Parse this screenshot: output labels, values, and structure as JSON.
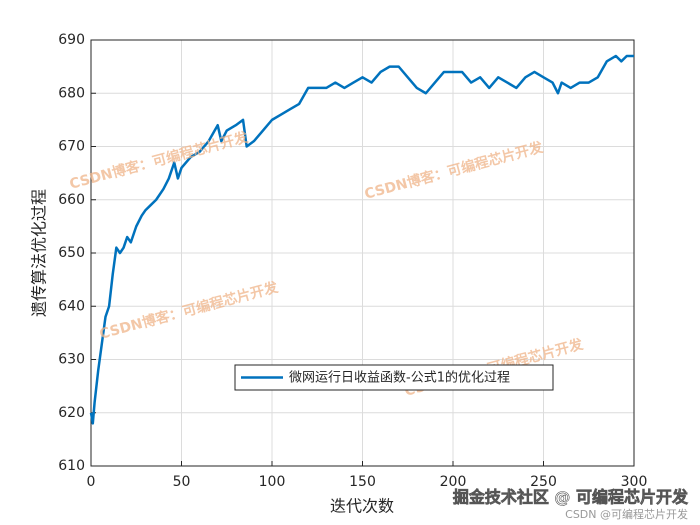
{
  "chart_data": {
    "type": "line",
    "xlabel": "迭代次数",
    "ylabel": "遗传算法优化过程",
    "x": [
      0,
      1,
      2,
      4,
      6,
      8,
      10,
      12,
      14,
      16,
      18,
      20,
      22,
      25,
      28,
      30,
      33,
      36,
      40,
      43,
      46,
      48,
      50,
      55,
      60,
      65,
      70,
      72,
      75,
      80,
      84,
      86,
      90,
      95,
      100,
      105,
      110,
      115,
      120,
      125,
      130,
      135,
      140,
      145,
      150,
      155,
      160,
      165,
      170,
      175,
      180,
      185,
      190,
      195,
      200,
      205,
      210,
      215,
      220,
      225,
      230,
      235,
      240,
      245,
      250,
      255,
      258,
      260,
      265,
      270,
      275,
      280,
      285,
      290,
      293,
      296,
      300
    ],
    "series": [
      {
        "name": "微网运行日收益函数-公式1的优化过程",
        "color": "#0072bd",
        "values": [
          620,
          618,
          622,
          628,
          633,
          638,
          640,
          646,
          651,
          650,
          651,
          653,
          652,
          655,
          657,
          658,
          659,
          660,
          662,
          664,
          667,
          664,
          666,
          668,
          669,
          671,
          674,
          671,
          673,
          674,
          675,
          670,
          671,
          673,
          675,
          676,
          677,
          678,
          681,
          681,
          681,
          682,
          681,
          682,
          683,
          682,
          684,
          685,
          685,
          683,
          681,
          680,
          682,
          684,
          684,
          684,
          682,
          683,
          681,
          683,
          682,
          681,
          683,
          684,
          683,
          682,
          680,
          682,
          681,
          682,
          682,
          683,
          686,
          687,
          686,
          687,
          687
        ]
      }
    ],
    "xlim": [
      0,
      300
    ],
    "xticks": [
      0,
      50,
      100,
      150,
      200,
      250,
      300
    ],
    "ylim": [
      610,
      690
    ],
    "yticks": [
      610,
      620,
      630,
      640,
      650,
      660,
      670,
      680,
      690
    ],
    "grid": true,
    "legend": "lower right",
    "watermarks": [
      "CSDN博客：可编程芯片开发",
      "CSDN博客：可编程芯片开发",
      "CSDN博客：可编程芯片开发",
      "CSDN博客：可编程芯片开发"
    ],
    "footer": [
      "掘金技术社区 @ 可编程芯片开发",
      "CSDN @可编程芯片开发"
    ]
  }
}
